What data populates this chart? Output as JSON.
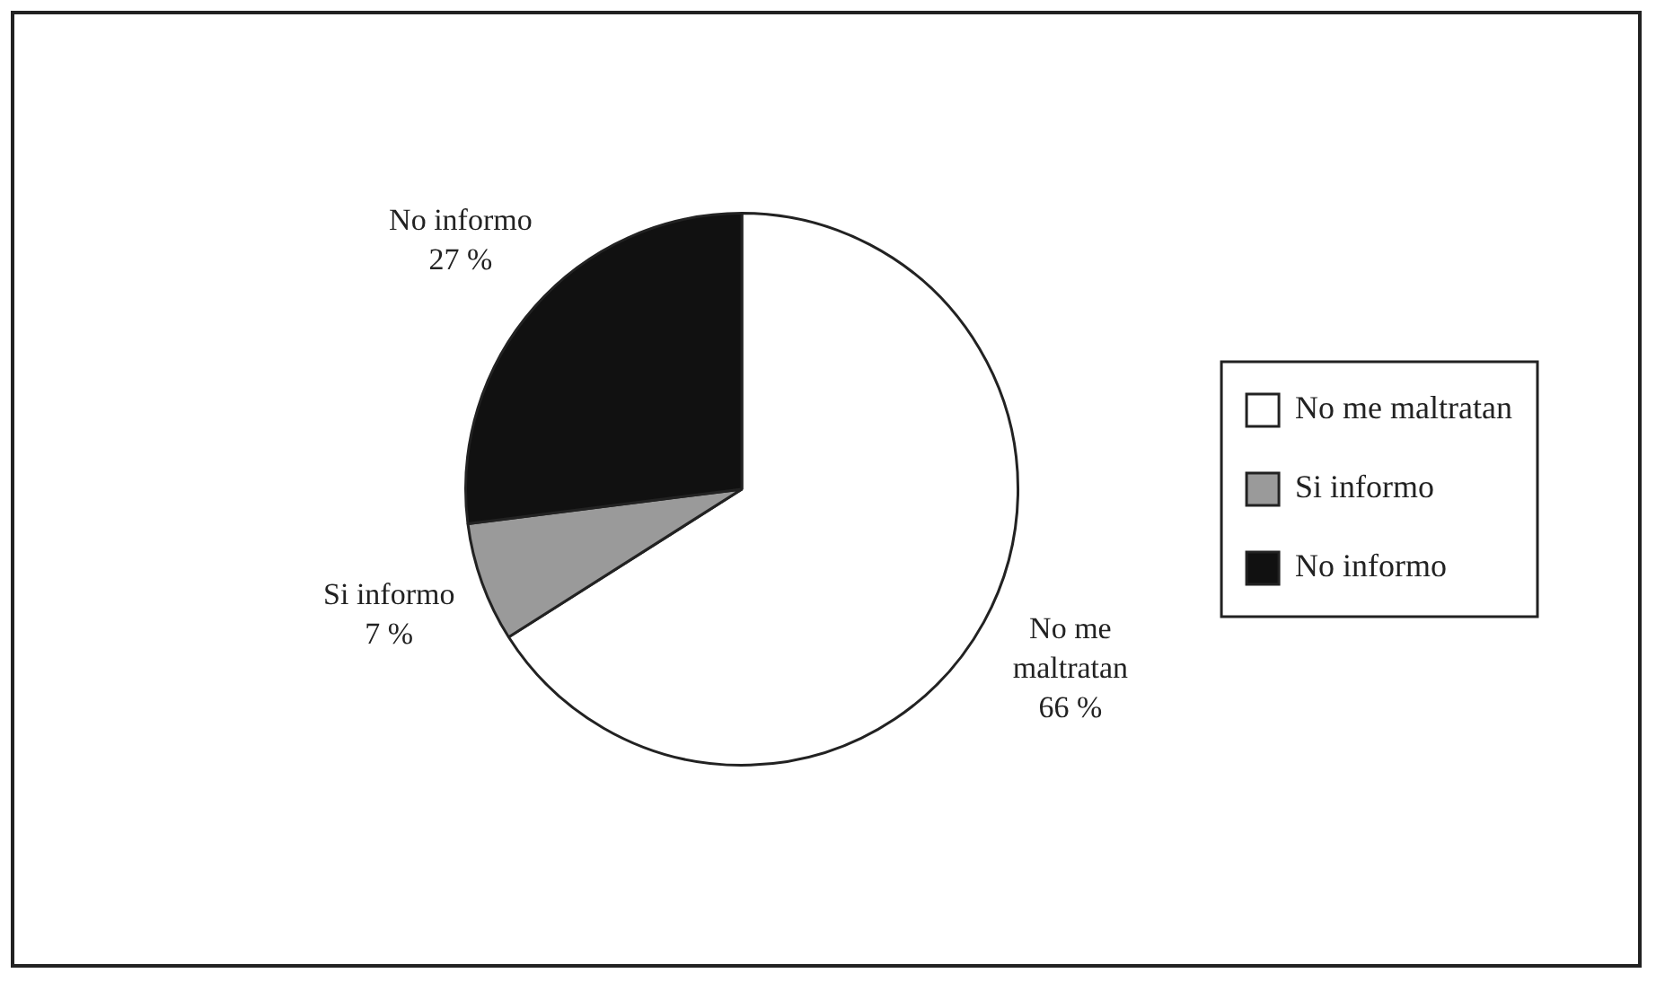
{
  "chart_data": {
    "type": "pie",
    "categories": [
      "No me maltratan",
      "Si informo",
      "No informo"
    ],
    "values": [
      66,
      7,
      27
    ],
    "colors": [
      "#ffffff",
      "#9a9a9a",
      "#111111"
    ],
    "value_labels": [
      "66 %",
      "7 %",
      "27 %"
    ],
    "legend": "right"
  }
}
